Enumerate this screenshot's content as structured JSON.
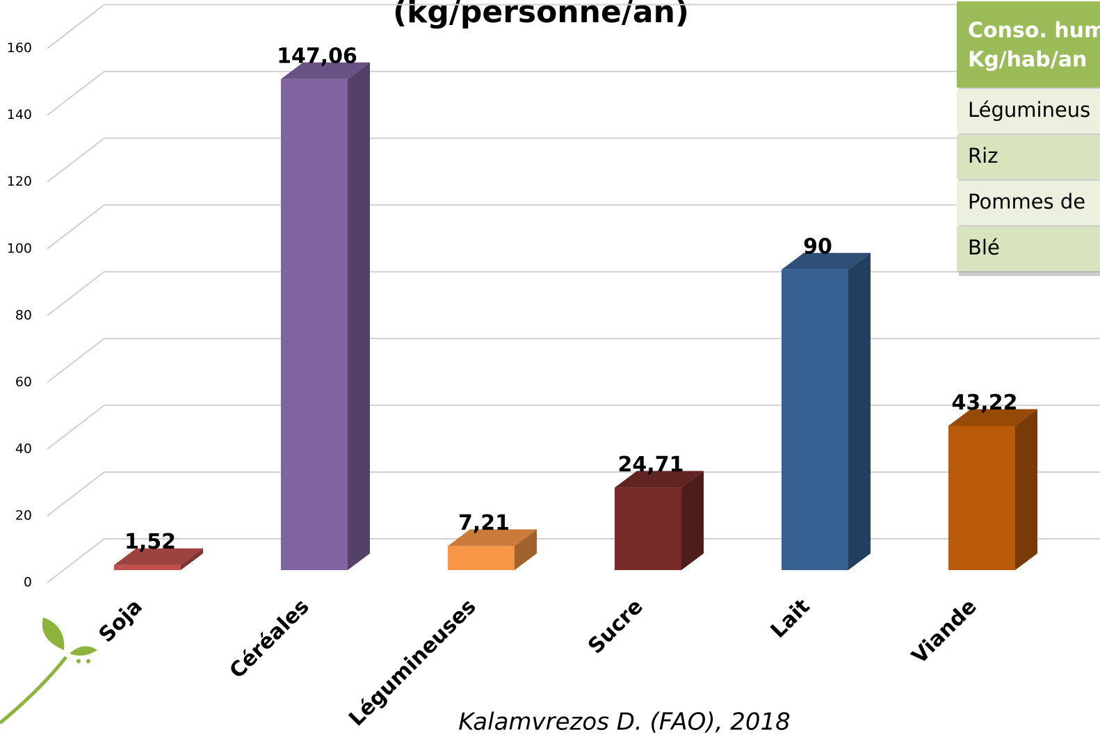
{
  "chart_data": {
    "type": "bar3d",
    "title": "(kg/personne/an)",
    "categories": [
      "Soja",
      "Céréales",
      "Légumineuses",
      "Sucre",
      "Lait",
      "Viande"
    ],
    "values": [
      1.52,
      147.06,
      7.21,
      24.71,
      90,
      43.22
    ],
    "value_labels": [
      "1,52",
      "147,06",
      "7,21",
      "24,71",
      "90",
      "43,22"
    ],
    "colors": [
      "#c0504d",
      "#8064a2",
      "#f79646",
      "#772c2a",
      "#376092",
      "#b85a0a"
    ],
    "ylim": [
      0,
      160
    ],
    "yticks": [
      0,
      20,
      40,
      60,
      80,
      100,
      120,
      140,
      160
    ],
    "grid": true,
    "source": "Kalamvrezos D. (FAO), 2018"
  },
  "table": {
    "header": [
      "Conso. hum",
      "Kg/hab/an"
    ],
    "rows": [
      "Légumineus",
      "Riz",
      "Pommes de",
      "Blé"
    ]
  }
}
